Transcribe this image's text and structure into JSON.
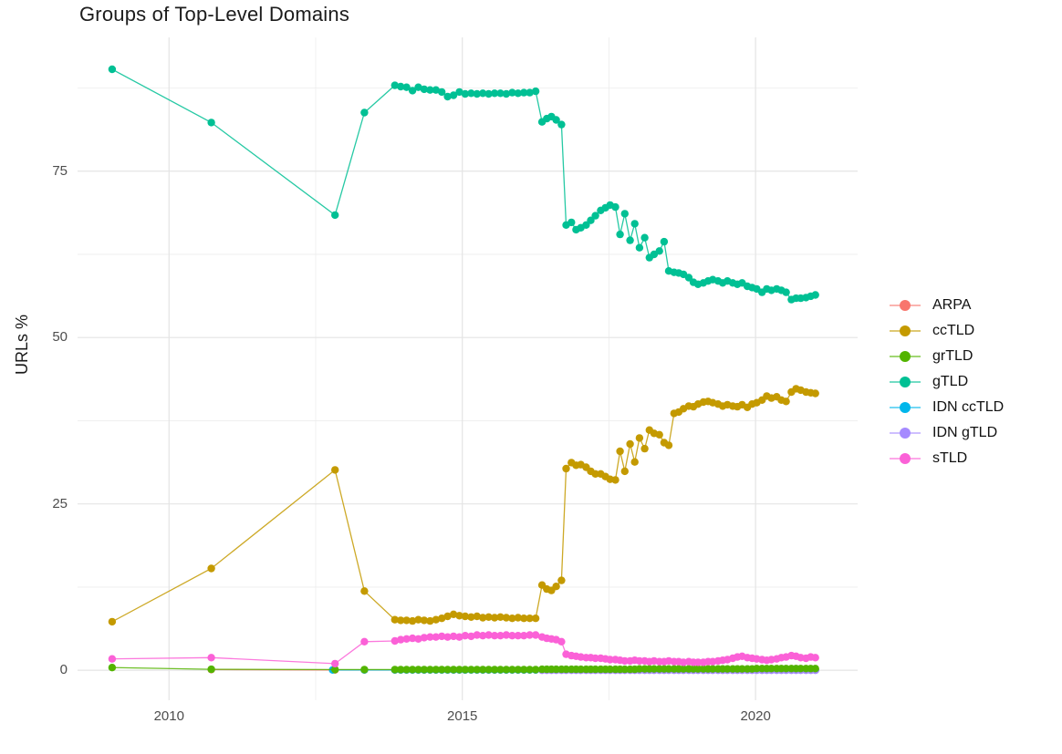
{
  "page": {
    "background": "#ffffff"
  },
  "chart_data": {
    "type": "scatter",
    "title": "Groups of Top-Level Domains",
    "xlabel": "",
    "ylabel": "URLs %",
    "legend_position": "right",
    "grid": true,
    "grid_major_color": "#e4e4e4",
    "grid_minor_color": "#ededed",
    "x_axis": {
      "ticks": [
        2010,
        2015,
        2020
      ],
      "tick_labels": [
        "2010",
        "2015",
        "2020"
      ],
      "minor_ticks": [
        2012.5,
        2017.5
      ],
      "range": [
        2008.44,
        2021.74
      ]
    },
    "y_axis": {
      "ticks": [
        0,
        25,
        50,
        75
      ],
      "tick_labels": [
        "0",
        "25",
        "50",
        "75"
      ],
      "minor_ticks": [
        12.5,
        37.5,
        62.5,
        87.5
      ],
      "range": [
        -4.5,
        95.1
      ]
    },
    "x_dense": [
      2013.85,
      2013.95,
      2014.05,
      2014.15,
      2014.25,
      2014.35,
      2014.45,
      2014.55,
      2014.65,
      2014.75,
      2014.85,
      2014.95,
      2015.05,
      2015.15,
      2015.25,
      2015.35,
      2015.45,
      2015.55,
      2015.65,
      2015.75,
      2015.85,
      2015.95,
      2016.05,
      2016.15,
      2016.25,
      2016.36,
      2016.44,
      2016.52,
      2016.6,
      2016.69,
      2016.77,
      2016.86,
      2016.94,
      2017.02,
      2017.11,
      2017.19,
      2017.27,
      2017.36,
      2017.44,
      2017.52,
      2017.61,
      2017.69,
      2017.77,
      2017.86,
      2017.94,
      2018.02,
      2018.11,
      2018.19,
      2018.27,
      2018.36,
      2018.44,
      2018.52,
      2018.61,
      2018.69,
      2018.77,
      2018.86,
      2018.94,
      2019.02,
      2019.11,
      2019.19,
      2019.27,
      2019.36,
      2019.44,
      2019.52,
      2019.61,
      2019.69,
      2019.77,
      2019.86,
      2019.94,
      2020.02,
      2020.11,
      2020.19,
      2020.27,
      2020.36,
      2020.44,
      2020.52,
      2020.61,
      2020.69,
      2020.77,
      2020.86,
      2020.94,
      2021.02
    ],
    "series": [
      {
        "name": "ARPA",
        "color": "#F8766D",
        "x_pre": [
          2010.72,
          2012.83,
          2013.33
        ],
        "y_pre": [
          0.1,
          0.05,
          0.05
        ],
        "dense_start": 0,
        "y_dense": [
          0.05,
          0.05,
          0.05,
          0.05,
          0.05,
          0.05,
          0.05,
          0.05,
          0.05,
          0.05,
          0.05,
          0.05,
          0.05,
          0.05,
          0.05,
          0.05,
          0.05,
          0.05,
          0.05,
          0.05,
          0.05,
          0.05,
          0.05,
          0.05,
          0.05,
          0.05,
          0.05,
          0.05,
          0.05,
          0.05,
          0.05,
          0.05,
          0.05,
          0.05,
          0.05,
          0.05,
          0.05,
          0.05,
          0.05,
          0.05,
          0.05,
          0.05,
          0.05,
          0.05,
          0.05,
          0.05,
          0.05,
          0.05,
          0.05,
          0.05,
          0.05,
          0.05,
          0.05,
          0.05,
          0.05,
          0.05,
          0.05,
          0.05,
          0.05,
          0.05,
          0.05,
          0.05,
          0.05,
          0.05,
          0.05,
          0.05,
          0.05,
          0.05,
          0.05,
          0.05,
          0.05,
          0.05,
          0.05,
          0.05,
          0.05,
          0.05,
          0.05,
          0.05,
          0.05,
          0.05,
          0.05,
          0.05
        ]
      },
      {
        "name": "ccTLD",
        "color": "#C49A00",
        "x_pre": [
          2009.03,
          2010.72,
          2012.83,
          2013.33
        ],
        "y_pre": [
          7.3,
          15.3,
          30.1,
          11.9
        ],
        "dense_start": 0,
        "y_dense": [
          7.6,
          7.5,
          7.5,
          7.4,
          7.6,
          7.5,
          7.4,
          7.6,
          7.8,
          8.1,
          8.4,
          8.2,
          8.1,
          8.0,
          8.1,
          7.9,
          8.0,
          7.9,
          8.0,
          7.9,
          7.8,
          7.9,
          7.8,
          7.8,
          7.8,
          12.8,
          12.2,
          12.0,
          12.6,
          13.5,
          30.3,
          31.2,
          30.8,
          30.9,
          30.5,
          29.9,
          29.5,
          29.5,
          29.1,
          28.7,
          28.6,
          32.9,
          29.9,
          34.0,
          31.3,
          34.9,
          33.3,
          36.1,
          35.6,
          35.4,
          34.2,
          33.8,
          38.6,
          38.8,
          39.3,
          39.7,
          39.6,
          40.0,
          40.3,
          40.4,
          40.2,
          40.0,
          39.7,
          39.9,
          39.7,
          39.6,
          39.9,
          39.5,
          40.0,
          40.2,
          40.6,
          41.2,
          40.9,
          41.1,
          40.6,
          40.4,
          41.8,
          42.3,
          42.1,
          41.8,
          41.7,
          41.6
        ]
      },
      {
        "name": "grTLD",
        "color": "#53B400",
        "x_pre": [
          2009.03,
          2010.72,
          2012.83,
          2013.33
        ],
        "y_pre": [
          0.4,
          0.15,
          0.1,
          0.1
        ],
        "dense_start": 0,
        "y_dense": [
          0.1,
          0.1,
          0.1,
          0.1,
          0.1,
          0.1,
          0.1,
          0.1,
          0.1,
          0.1,
          0.1,
          0.1,
          0.1,
          0.1,
          0.1,
          0.1,
          0.1,
          0.1,
          0.1,
          0.1,
          0.1,
          0.1,
          0.1,
          0.1,
          0.1,
          0.15,
          0.15,
          0.15,
          0.15,
          0.15,
          0.15,
          0.15,
          0.15,
          0.15,
          0.15,
          0.15,
          0.15,
          0.15,
          0.15,
          0.15,
          0.15,
          0.15,
          0.15,
          0.15,
          0.15,
          0.2,
          0.2,
          0.2,
          0.2,
          0.2,
          0.2,
          0.2,
          0.2,
          0.2,
          0.2,
          0.2,
          0.2,
          0.2,
          0.2,
          0.2,
          0.2,
          0.2,
          0.2,
          0.2,
          0.2,
          0.2,
          0.2,
          0.2,
          0.2,
          0.25,
          0.25,
          0.25,
          0.25,
          0.25,
          0.25,
          0.25,
          0.25,
          0.25,
          0.25,
          0.25,
          0.25,
          0.25
        ]
      },
      {
        "name": "gTLD",
        "color": "#00C094",
        "x_pre": [
          2009.03,
          2010.72,
          2012.83,
          2013.33
        ],
        "y_pre": [
          90.3,
          82.3,
          68.4,
          83.8
        ],
        "dense_start": 0,
        "y_dense": [
          87.9,
          87.7,
          87.6,
          87.1,
          87.6,
          87.3,
          87.2,
          87.2,
          86.9,
          86.2,
          86.4,
          86.9,
          86.6,
          86.7,
          86.6,
          86.7,
          86.6,
          86.7,
          86.7,
          86.6,
          86.8,
          86.7,
          86.8,
          86.8,
          87.0,
          82.4,
          82.9,
          83.2,
          82.7,
          82.0,
          66.9,
          67.3,
          66.2,
          66.5,
          66.9,
          67.6,
          68.3,
          69.1,
          69.5,
          69.9,
          69.6,
          65.5,
          68.6,
          64.6,
          67.1,
          63.5,
          65.0,
          62.0,
          62.5,
          63.0,
          64.4,
          60.0,
          59.8,
          59.7,
          59.5,
          59.0,
          58.3,
          58.0,
          58.2,
          58.5,
          58.7,
          58.5,
          58.2,
          58.5,
          58.2,
          58.0,
          58.2,
          57.7,
          57.5,
          57.3,
          56.8,
          57.3,
          57.1,
          57.3,
          57.1,
          56.8,
          55.7,
          55.9,
          55.9,
          56.0,
          56.2,
          56.4
        ]
      },
      {
        "name": "IDN ccTLD",
        "color": "#00B6EB",
        "x_pre": [
          2012.79,
          2013.33
        ],
        "y_pre": [
          0.05,
          0.05
        ],
        "dense_start": 0,
        "y_dense": [
          0.05,
          0.05,
          0.05,
          0.05,
          0.05,
          0.05,
          0.05,
          0.05,
          0.05,
          0.05,
          0.05,
          0.05,
          0.05,
          0.05,
          0.05,
          0.05,
          0.05,
          0.05,
          0.05,
          0.05,
          0.05,
          0.05,
          0.05,
          0.05,
          0.05,
          0.05,
          0.05,
          0.05,
          0.05,
          0.05,
          0.05,
          0.05,
          0.05,
          0.05,
          0.05,
          0.05,
          0.05,
          0.05,
          0.05,
          0.05,
          0.05,
          0.05,
          0.05,
          0.05,
          0.05,
          0.05,
          0.05,
          0.05,
          0.05,
          0.05,
          0.05,
          0.05,
          0.05,
          0.05,
          0.05,
          0.05,
          0.05,
          0.05,
          0.05,
          0.05,
          0.05,
          0.05,
          0.05,
          0.05,
          0.05,
          0.05,
          0.05,
          0.05,
          0.05,
          0.05,
          0.05,
          0.05,
          0.05,
          0.05,
          0.05,
          0.05,
          0.05,
          0.05,
          0.05,
          0.05,
          0.05,
          0.05
        ]
      },
      {
        "name": "IDN gTLD",
        "color": "#A58AFF",
        "x_pre": [],
        "y_pre": [],
        "dense_start": 25,
        "y_dense": [
          0,
          0,
          0,
          0,
          0,
          0,
          0,
          0,
          0,
          0,
          0,
          0,
          0,
          0,
          0,
          0,
          0,
          0,
          0,
          0,
          0,
          0,
          0,
          0,
          0,
          0,
          0,
          0,
          0,
          0,
          0,
          0,
          0,
          0,
          0,
          0,
          0,
          0,
          0,
          0,
          0,
          0,
          0,
          0,
          0,
          0,
          0,
          0,
          0,
          0,
          0,
          0,
          0,
          0,
          0,
          0,
          0
        ]
      },
      {
        "name": "sTLD",
        "color": "#FB61D7",
        "x_pre": [
          2009.03,
          2010.72,
          2012.83,
          2013.33
        ],
        "y_pre": [
          1.7,
          1.9,
          1.0,
          4.3
        ],
        "dense_start": 0,
        "y_dense": [
          4.4,
          4.6,
          4.7,
          4.8,
          4.7,
          4.9,
          5.0,
          5.0,
          5.1,
          5.0,
          5.1,
          5.0,
          5.2,
          5.1,
          5.3,
          5.2,
          5.3,
          5.2,
          5.2,
          5.3,
          5.2,
          5.2,
          5.2,
          5.3,
          5.3,
          5.0,
          4.8,
          4.7,
          4.6,
          4.3,
          2.4,
          2.2,
          2.1,
          2.0,
          1.9,
          1.9,
          1.8,
          1.8,
          1.7,
          1.6,
          1.6,
          1.5,
          1.4,
          1.4,
          1.5,
          1.4,
          1.4,
          1.3,
          1.4,
          1.3,
          1.3,
          1.4,
          1.3,
          1.3,
          1.2,
          1.3,
          1.2,
          1.2,
          1.2,
          1.3,
          1.3,
          1.4,
          1.5,
          1.6,
          1.8,
          2.0,
          2.1,
          1.9,
          1.8,
          1.7,
          1.6,
          1.5,
          1.6,
          1.7,
          1.9,
          2.0,
          2.2,
          2.1,
          1.9,
          1.8,
          2.0,
          1.9
        ]
      }
    ]
  }
}
